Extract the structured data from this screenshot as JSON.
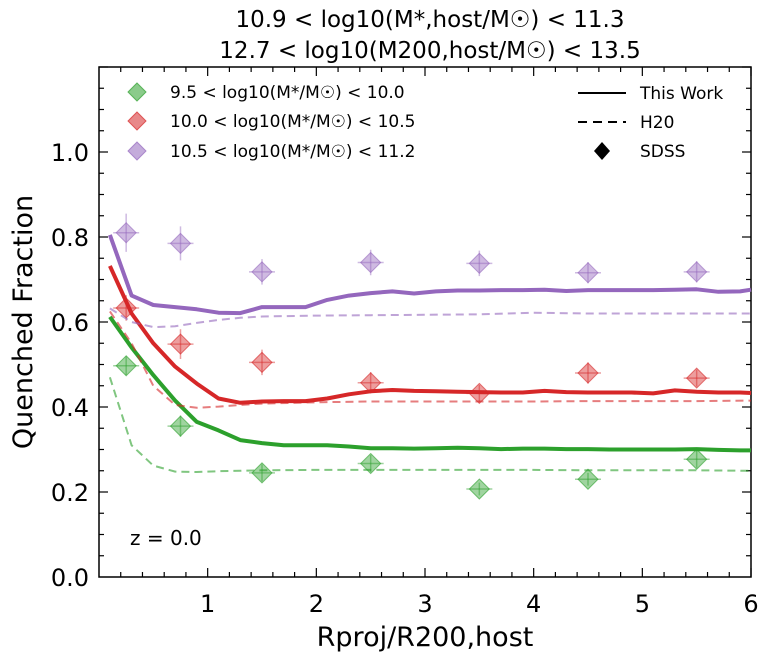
{
  "chart_data": {
    "type": "line",
    "title_line1": "10.9 < log10(M*,host/M☉) < 11.3",
    "title_line2": "12.7 < log10(M200,host/M☉) < 13.5",
    "xlabel": "Rproj/R200,host",
    "ylabel": "Quenched Fraction",
    "xlim": [
      0.0,
      6.0
    ],
    "ylim": [
      0.0,
      1.2
    ],
    "xticks": [
      1,
      2,
      3,
      4,
      5,
      6
    ],
    "xtick_labels": [
      "1",
      "2",
      "3",
      "4",
      "5",
      "6"
    ],
    "yticks": [
      0.0,
      0.2,
      0.4,
      0.6,
      0.8,
      1.0
    ],
    "ytick_labels": [
      "0.0",
      "0.2",
      "0.4",
      "0.6",
      "0.8",
      "1.0"
    ],
    "annotation": "z = 0.0",
    "style_legend": [
      {
        "label": "This Work",
        "kind": "solid"
      },
      {
        "label": "H20",
        "kind": "dashed"
      },
      {
        "label": "SDSS",
        "kind": "diamond"
      }
    ],
    "series": [
      {
        "name": "9.5 < log10(M*/M☉) < 10.0",
        "color": "#2ca02c",
        "this_work": {
          "x": [
            0.1,
            0.3,
            0.5,
            0.7,
            0.9,
            1.1,
            1.3,
            1.5,
            1.7,
            1.9,
            2.1,
            2.3,
            2.5,
            2.7,
            2.9,
            3.1,
            3.3,
            3.5,
            3.7,
            3.9,
            4.1,
            4.3,
            4.5,
            4.7,
            4.9,
            5.1,
            5.3,
            5.5,
            5.7,
            5.9,
            6.0
          ],
          "y": [
            0.612,
            0.54,
            0.475,
            0.415,
            0.365,
            0.345,
            0.322,
            0.315,
            0.31,
            0.31,
            0.31,
            0.307,
            0.303,
            0.303,
            0.302,
            0.303,
            0.304,
            0.303,
            0.301,
            0.302,
            0.302,
            0.301,
            0.301,
            0.3,
            0.3,
            0.3,
            0.3,
            0.301,
            0.299,
            0.298,
            0.298
          ]
        },
        "h20": {
          "x": [
            0.1,
            0.3,
            0.5,
            0.7,
            0.9,
            1.1,
            1.3,
            1.5,
            2.0,
            2.5,
            3.0,
            3.5,
            4.0,
            4.5,
            5.0,
            5.5,
            6.0
          ],
          "y": [
            0.47,
            0.31,
            0.262,
            0.248,
            0.247,
            0.249,
            0.25,
            0.251,
            0.252,
            0.252,
            0.252,
            0.252,
            0.252,
            0.251,
            0.251,
            0.251,
            0.25
          ]
        },
        "sdss": {
          "x": [
            0.25,
            0.75,
            1.5,
            2.5,
            3.5,
            4.5,
            5.5
          ],
          "y": [
            0.497,
            0.355,
            0.245,
            0.267,
            0.207,
            0.23,
            0.277
          ],
          "err": [
            0.022,
            0.025,
            0.02,
            0.02,
            0.015,
            0.015,
            0.02
          ]
        }
      },
      {
        "name": "10.0 < log10(M*/M☉) < 10.5",
        "color": "#d62728",
        "this_work": {
          "x": [
            0.1,
            0.3,
            0.5,
            0.7,
            0.9,
            1.1,
            1.3,
            1.5,
            1.7,
            1.9,
            2.1,
            2.3,
            2.5,
            2.7,
            2.9,
            3.1,
            3.3,
            3.5,
            3.7,
            3.9,
            4.1,
            4.3,
            4.5,
            4.7,
            4.9,
            5.1,
            5.3,
            5.5,
            5.7,
            5.9,
            6.0
          ],
          "y": [
            0.732,
            0.62,
            0.55,
            0.495,
            0.455,
            0.42,
            0.41,
            0.413,
            0.414,
            0.414,
            0.42,
            0.43,
            0.437,
            0.44,
            0.438,
            0.437,
            0.436,
            0.435,
            0.434,
            0.434,
            0.438,
            0.435,
            0.434,
            0.434,
            0.434,
            0.432,
            0.439,
            0.436,
            0.434,
            0.434,
            0.433
          ]
        },
        "h20": {
          "x": [
            0.1,
            0.3,
            0.5,
            0.7,
            0.9,
            1.1,
            1.3,
            1.5,
            2.0,
            2.5,
            3.0,
            3.5,
            4.0,
            4.5,
            5.0,
            5.5,
            6.0
          ],
          "y": [
            0.625,
            0.55,
            0.45,
            0.405,
            0.398,
            0.401,
            0.405,
            0.408,
            0.411,
            0.413,
            0.413,
            0.413,
            0.413,
            0.414,
            0.414,
            0.414,
            0.415
          ]
        },
        "sdss": {
          "x": [
            0.25,
            0.75,
            1.5,
            2.5,
            3.5,
            4.5,
            5.5
          ],
          "y": [
            0.633,
            0.548,
            0.505,
            0.457,
            0.432,
            0.48,
            0.468
          ],
          "err": [
            0.03,
            0.035,
            0.03,
            0.025,
            0.02,
            0.025,
            0.02
          ]
        }
      },
      {
        "name": "10.5 < log10(M*/M☉) < 11.2",
        "color": "#9467bd",
        "this_work": {
          "x": [
            0.1,
            0.3,
            0.5,
            0.7,
            0.9,
            1.1,
            1.3,
            1.5,
            1.7,
            1.9,
            2.1,
            2.3,
            2.5,
            2.7,
            2.9,
            3.1,
            3.3,
            3.5,
            3.7,
            3.9,
            4.1,
            4.3,
            4.5,
            4.7,
            4.9,
            5.1,
            5.3,
            5.5,
            5.7,
            5.9,
            6.0
          ],
          "y": [
            0.805,
            0.662,
            0.64,
            0.635,
            0.63,
            0.622,
            0.621,
            0.635,
            0.635,
            0.635,
            0.652,
            0.662,
            0.668,
            0.672,
            0.667,
            0.672,
            0.674,
            0.674,
            0.675,
            0.675,
            0.676,
            0.673,
            0.675,
            0.675,
            0.675,
            0.675,
            0.676,
            0.677,
            0.671,
            0.672,
            0.676
          ]
        },
        "h20": {
          "x": [
            0.1,
            0.3,
            0.5,
            0.7,
            0.9,
            1.1,
            1.3,
            1.5,
            2.0,
            2.5,
            3.0,
            3.5,
            4.0,
            4.5,
            5.0,
            5.5,
            6.0
          ],
          "y": [
            0.632,
            0.6,
            0.588,
            0.59,
            0.598,
            0.605,
            0.61,
            0.613,
            0.615,
            0.616,
            0.617,
            0.618,
            0.622,
            0.62,
            0.62,
            0.62,
            0.62
          ]
        },
        "sdss": {
          "x": [
            0.25,
            0.75,
            1.5,
            2.5,
            3.5,
            4.5,
            5.5
          ],
          "y": [
            0.81,
            0.785,
            0.718,
            0.74,
            0.738,
            0.716,
            0.718
          ],
          "err": [
            0.045,
            0.04,
            0.03,
            0.03,
            0.03,
            0.025,
            0.025
          ]
        }
      }
    ]
  }
}
